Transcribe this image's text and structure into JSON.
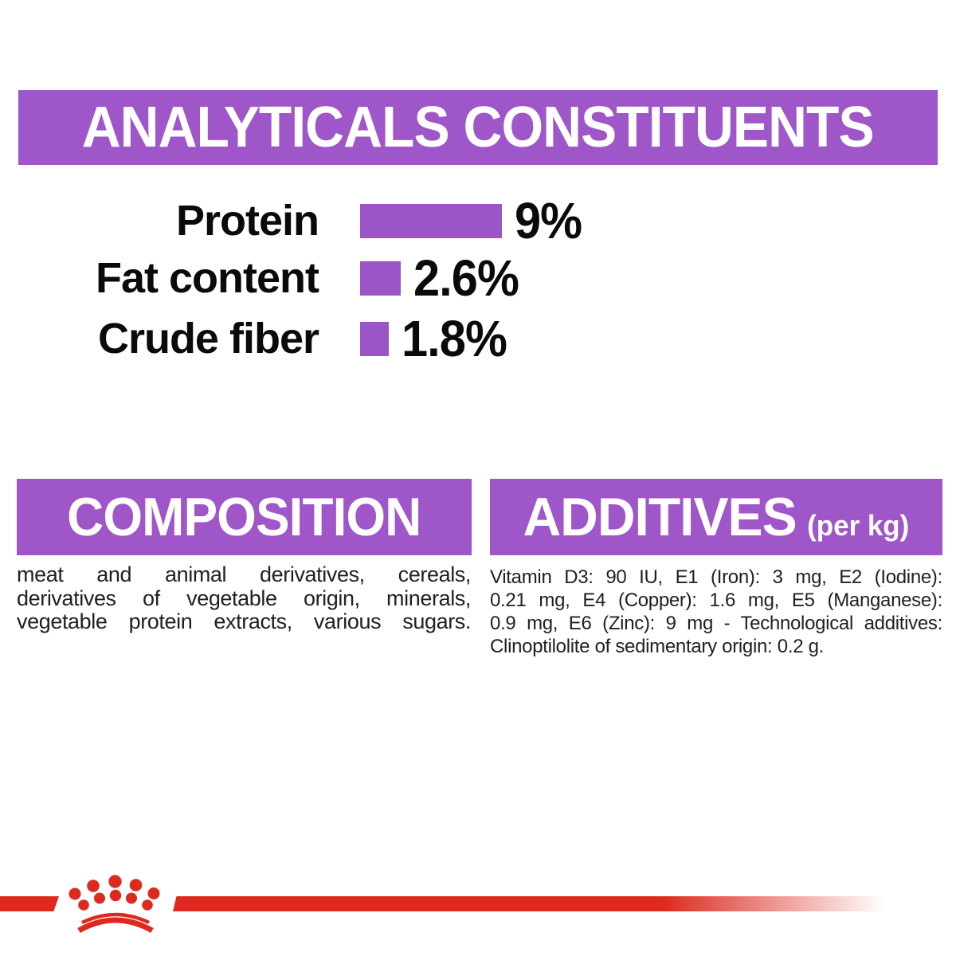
{
  "colors": {
    "purple_banner": "#9e56c8",
    "purple_bar": "#9c55c6",
    "red": "#dd2a1e",
    "banner_text": "#ffffff",
    "body_text": "#212121"
  },
  "header": {
    "title": "ANALYTICALS CONSTITUENTS"
  },
  "chart_data": {
    "type": "bar",
    "orientation": "horizontal",
    "title": "ANALYTICALS CONSTITUENTS",
    "categories": [
      "Protein",
      "Fat content",
      "Crude fiber"
    ],
    "values": [
      9,
      2.6,
      1.8
    ],
    "value_labels": [
      "9%",
      "2.6%",
      "1.8%"
    ],
    "unit": "%",
    "xlim": [
      0,
      9
    ],
    "grid": false,
    "legend": false,
    "bar_color": "#9c55c6"
  },
  "composition": {
    "title": "COMPOSITION",
    "lines": [
      "meat and animal derivatives, cereals,",
      "derivatives of vegetable origin, minerals,",
      "vegetable protein extracts, various sugars."
    ],
    "last_line_justified": true,
    "text": "meat and animal derivatives, cereals, derivatives of vegetable origin, minerals, vegetable protein extracts, various sugars."
  },
  "additives": {
    "title": "ADDITIVES",
    "title_suffix": "(per kg)",
    "lines": [
      "Vitamin D3: 90 IU, E1 (Iron): 3 mg, E2 (Iodine):",
      "0.21 mg, E4 (Copper): 1.6 mg, E5 (Manganese):",
      "0.9 mg, E6 (Zinc): 9 mg - Technological additives:",
      "Clinoptilolite of sedimentary origin: 0.2 g."
    ],
    "last_line_justified": false,
    "text": "Vitamin D3: 90 IU, E1 (Iron): 3 mg, E2 (Iodine): 0.21 mg, E4 (Copper): 1.6 mg, E5 (Manganese): 0.9 mg, E6 (Zinc): 9 mg - Technological additives: Clinoptilolite of sedimentary origin: 0.2 g."
  },
  "footer": {
    "brand_icon": "royal-canin-crown"
  }
}
